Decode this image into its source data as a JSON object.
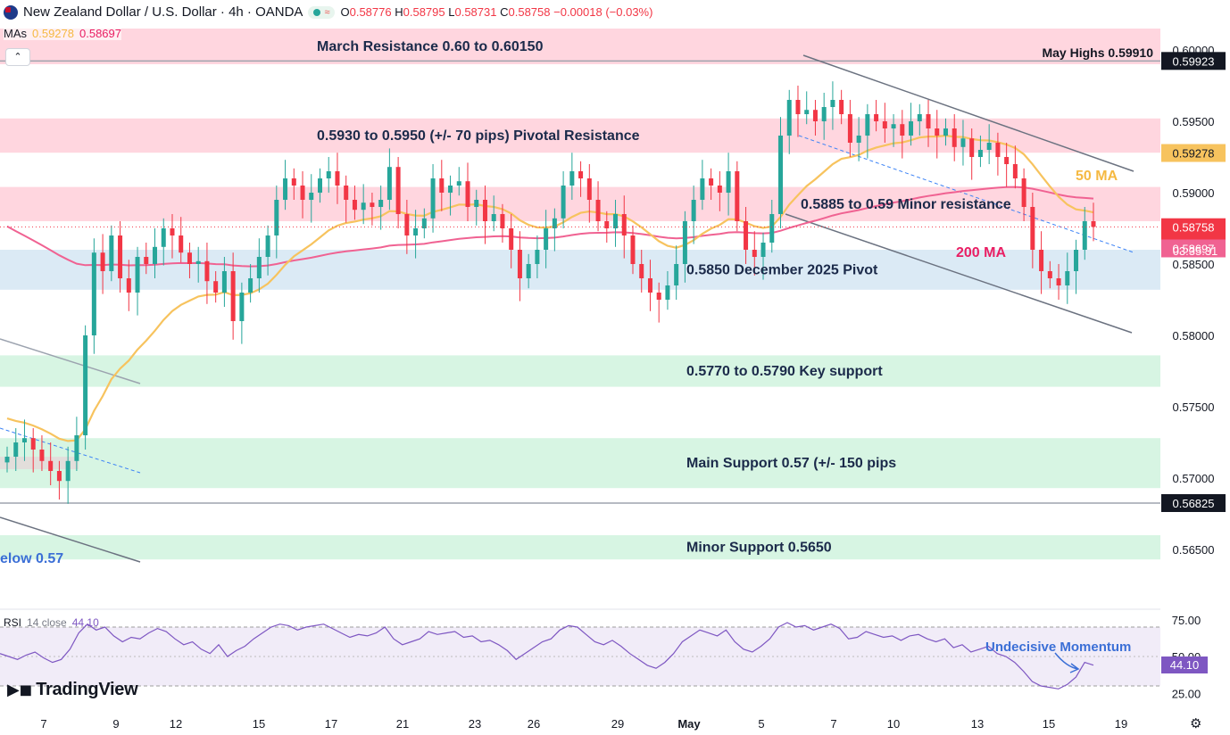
{
  "header": {
    "symbol": "New Zealand Dollar / U.S. Dollar · 4h · OANDA",
    "open_label": "O",
    "open": "0.58776",
    "high_label": "H",
    "high": "0.58795",
    "low_label": "L",
    "low": "0.58731",
    "close_label": "C",
    "close": "0.58758",
    "change": "−0.00018 (−0.03%)"
  },
  "mas_legend": {
    "label": "MAs",
    "ma50_value": "0.59278",
    "ma200_value": "0.58697"
  },
  "rsi_legend": {
    "label": "RSI",
    "params": "14 close",
    "value": "44.10"
  },
  "brand": {
    "name": "TradingView",
    "icon": "tradingview-logo-icon"
  },
  "icons": {
    "collapse": "chevron-up-icon",
    "settings": "gear-icon",
    "flag": "nz-flag-icon",
    "market_status": "market-status-icon",
    "alert": "bell-icon"
  },
  "colors": {
    "up": "#26a69a",
    "down": "#f23645",
    "ma50": "#f7c35e",
    "ma200": "#f06292",
    "rsi": "#7e57c2",
    "resistance_zone": "#ffd6df",
    "support_zone": "#d7f5e3",
    "pivot_zone": "#dbeaf5",
    "channel": "#6b7280",
    "trend_dash": "#3b82f6"
  },
  "chart_data": {
    "type": "candlestick",
    "instrument": "NZD/USD",
    "timeframe": "4h",
    "ylim": [
      0.5615,
      0.602
    ],
    "y_ticks": [
      "0.60000",
      "0.59500",
      "0.59000",
      "0.58500",
      "0.58000",
      "0.57500",
      "0.57000",
      "0.56500"
    ],
    "x_ticks": [
      "7",
      "9",
      "12",
      "15",
      "17",
      "21",
      "23",
      "26",
      "29",
      "May",
      "5",
      "7",
      "10",
      "13",
      "15",
      "19"
    ],
    "closes": [
      0.5715,
      0.5725,
      0.5728,
      0.572,
      0.5712,
      0.5705,
      0.5698,
      0.5712,
      0.573,
      0.58,
      0.5858,
      0.5845,
      0.587,
      0.584,
      0.583,
      0.5855,
      0.585,
      0.5862,
      0.5875,
      0.587,
      0.5858,
      0.585,
      0.5852,
      0.5838,
      0.583,
      0.5845,
      0.581,
      0.583,
      0.584,
      0.5855,
      0.587,
      0.5895,
      0.591,
      0.5905,
      0.5895,
      0.59,
      0.591,
      0.5915,
      0.5905,
      0.5895,
      0.5888,
      0.5893,
      0.589,
      0.5895,
      0.5918,
      0.5885,
      0.587,
      0.5875,
      0.5882,
      0.591,
      0.59,
      0.5905,
      0.5908,
      0.589,
      0.5895,
      0.588,
      0.5885,
      0.5875,
      0.586,
      0.584,
      0.585,
      0.586,
      0.5875,
      0.5882,
      0.5905,
      0.5915,
      0.591,
      0.5895,
      0.588,
      0.5875,
      0.5885,
      0.587,
      0.585,
      0.584,
      0.583,
      0.5825,
      0.5835,
      0.585,
      0.588,
      0.5895,
      0.591,
      0.5905,
      0.59,
      0.5915,
      0.588,
      0.586,
      0.5855,
      0.5865,
      0.5885,
      0.594,
      0.5965,
      0.5955,
      0.5958,
      0.595,
      0.596,
      0.5965,
      0.5955,
      0.5935,
      0.594,
      0.5955,
      0.595,
      0.5945,
      0.5948,
      0.594,
      0.595,
      0.5955,
      0.5945,
      0.594,
      0.5945,
      0.5932,
      0.5938,
      0.5925,
      0.593,
      0.5935,
      0.5925,
      0.592,
      0.591,
      0.589,
      0.586,
      0.5845,
      0.584,
      0.5835,
      0.5845,
      0.586,
      0.588,
      0.5876
    ],
    "ma50": {
      "name": "50 MA",
      "start": 0.5745,
      "end": 0.59278
    },
    "ma200": {
      "name": "200 MA",
      "start": 0.588,
      "end": 0.58697
    },
    "price_labels": [
      {
        "value": 0.59923,
        "text": "0.59923",
        "style": "black"
      },
      {
        "value": 0.59278,
        "text": "0.59278",
        "style": "ma50"
      },
      {
        "value": 0.58758,
        "text": "0.58758",
        "style": "down"
      },
      {
        "value": 0.58697,
        "text": "0.58697",
        "style": "ma200"
      },
      {
        "value": 0.56825,
        "text": "0.56825",
        "style": "black"
      }
    ],
    "countdown": "03:35:31",
    "horizontal_lines": [
      0.59923,
      0.56825
    ],
    "zones": [
      {
        "top": 0.6015,
        "bottom": 0.599,
        "kind": "resistance",
        "label": "March Resistance 0.60 to 0.60150"
      },
      {
        "top": 0.5952,
        "bottom": 0.5928,
        "kind": "resistance",
        "label": "0.5930 to 0.5950 (+/- 70 pips) Pivotal Resistance"
      },
      {
        "top": 0.5904,
        "bottom": 0.588,
        "kind": "resistance",
        "label": "0.5885 to 0.59 Minor resistance"
      },
      {
        "top": 0.586,
        "bottom": 0.5832,
        "kind": "pivot",
        "label": "0.5850 December 2025 Pivot"
      },
      {
        "top": 0.5786,
        "bottom": 0.5764,
        "kind": "support",
        "label": "0.5770 to 0.5790 Key support"
      },
      {
        "top": 0.5728,
        "bottom": 0.5693,
        "kind": "support",
        "label": "Main Support 0.57 (+/- 150 pips"
      },
      {
        "top": 0.566,
        "bottom": 0.5643,
        "kind": "support",
        "label": "Minor Support 0.5650"
      }
    ],
    "annotations": {
      "may_highs": "May Highs 0.59910",
      "ma50": "50 MA",
      "ma200": "200 MA",
      "below": "elow 0.57"
    },
    "rsi": {
      "name": "RSI 14 close",
      "value": 44.1,
      "levels": [
        70,
        50,
        30
      ],
      "ticks": [
        "75.00",
        "50.00",
        "25.00"
      ],
      "annotation": "Undecisive Momentum",
      "points": [
        52,
        50,
        48,
        51,
        53,
        49,
        46,
        48,
        55,
        66,
        72,
        68,
        70,
        64,
        60,
        63,
        62,
        66,
        69,
        67,
        62,
        58,
        60,
        55,
        52,
        58,
        50,
        54,
        57,
        62,
        66,
        70,
        72,
        71,
        68,
        70,
        71,
        72,
        69,
        66,
        63,
        65,
        64,
        66,
        70,
        62,
        58,
        60,
        62,
        67,
        65,
        66,
        67,
        63,
        64,
        60,
        61,
        58,
        54,
        48,
        52,
        56,
        60,
        62,
        68,
        71,
        70,
        65,
        60,
        58,
        61,
        57,
        52,
        48,
        44,
        42,
        46,
        52,
        60,
        64,
        68,
        66,
        64,
        68,
        60,
        55,
        53,
        57,
        62,
        70,
        73,
        70,
        71,
        68,
        70,
        72,
        69,
        62,
        63,
        67,
        65,
        63,
        64,
        61,
        64,
        65,
        62,
        60,
        62,
        56,
        58,
        53,
        55,
        57,
        52,
        50,
        46,
        40,
        33,
        30,
        29,
        28,
        31,
        36,
        46,
        44.1
      ]
    }
  }
}
